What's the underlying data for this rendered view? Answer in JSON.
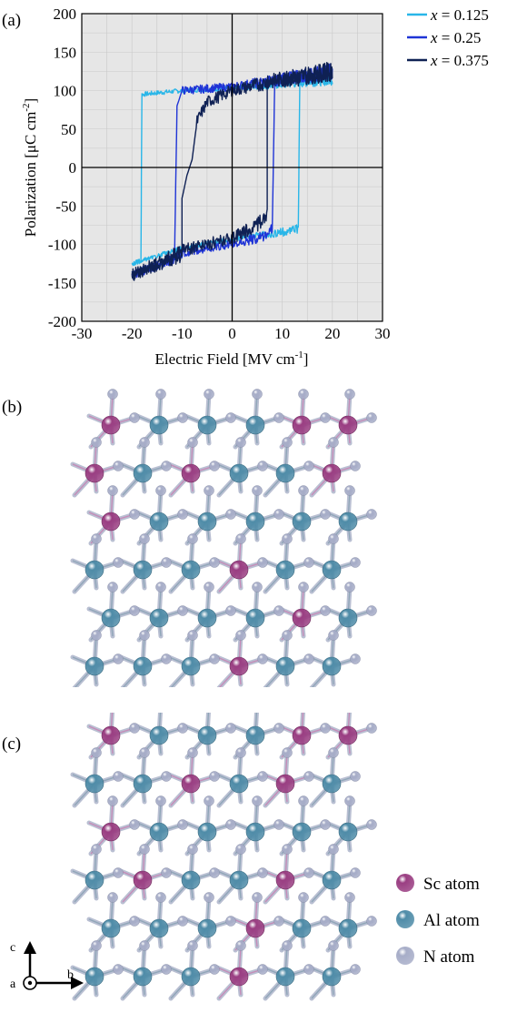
{
  "panels": {
    "a": "(a)",
    "b": "(b)",
    "c": "(c)"
  },
  "chart_data": {
    "type": "line",
    "title": "",
    "xlabel_main": "Electric Field [MV cm",
    "xlabel_sup": "-1",
    "xlabel_end": "]",
    "ylabel_main": "Polarization [μC cm",
    "ylabel_sup": "-2",
    "ylabel_end": "]",
    "xlim": [
      -30,
      30
    ],
    "ylim": [
      -200,
      200
    ],
    "xticks": [
      -30,
      -20,
      -10,
      0,
      10,
      20,
      30
    ],
    "yticks": [
      -200,
      -150,
      -100,
      -50,
      0,
      50,
      100,
      150,
      200
    ],
    "xtick_labels": [
      "-30",
      "-20",
      "-10",
      "0",
      "10",
      "20",
      "30"
    ],
    "ytick_labels": [
      "-200",
      "-150",
      "-100",
      "-50",
      "0",
      "50",
      "100",
      "150",
      "200"
    ],
    "grid": true,
    "legend": "outside-top-right",
    "series": [
      {
        "name": "x = 0.125",
        "legend_var": "x",
        "legend_val": " = 0.125",
        "color": "#29b6e8",
        "loop": [
          [
            -20,
            -125
          ],
          [
            -18.2,
            -122
          ],
          [
            -18,
            95
          ],
          [
            -15,
            97
          ],
          [
            -10,
            100
          ],
          [
            0,
            103
          ],
          [
            10,
            108
          ],
          [
            20,
            115
          ],
          [
            13.5,
            113
          ],
          [
            13.2,
            -80
          ],
          [
            10,
            -84
          ],
          [
            0,
            -93
          ],
          [
            -10,
            -105
          ],
          [
            -20,
            -125
          ]
        ]
      },
      {
        "name": "x = 0.25",
        "legend_var": "x",
        "legend_val": " = 0.25",
        "color": "#1f34d6",
        "loop": [
          [
            -20,
            -140
          ],
          [
            -11.5,
            -120
          ],
          [
            -11,
            80
          ],
          [
            -10,
            100
          ],
          [
            0,
            105
          ],
          [
            10,
            115
          ],
          [
            20,
            125
          ],
          [
            8.5,
            113
          ],
          [
            8,
            -80
          ],
          [
            6,
            -90
          ],
          [
            0,
            -100
          ],
          [
            -10,
            -112
          ],
          [
            -20,
            -140
          ]
        ]
      },
      {
        "name": "x = 0.375",
        "legend_var": "x",
        "legend_val": " = 0.375",
        "color": "#0f2154",
        "loop": [
          [
            -20,
            -140
          ],
          [
            -10,
            -115
          ],
          [
            -10,
            -40
          ],
          [
            -9,
            -10
          ],
          [
            -8,
            10
          ],
          [
            -7,
            60
          ],
          [
            -5,
            85
          ],
          [
            0,
            100
          ],
          [
            10,
            115
          ],
          [
            20,
            125
          ],
          [
            7,
            110
          ],
          [
            7,
            -60
          ],
          [
            5,
            -75
          ],
          [
            0,
            -92
          ],
          [
            -10,
            -108
          ],
          [
            -20,
            -140
          ]
        ]
      }
    ]
  },
  "structures": {
    "legend": [
      {
        "label": "Sc atom",
        "color": "#9a3e82"
      },
      {
        "label": "Al atom",
        "color": "#4f8ca8"
      },
      {
        "label": "N atom",
        "color": "#a7adc8"
      }
    ],
    "axes": {
      "c": "c",
      "a": "a",
      "b": "b"
    }
  }
}
